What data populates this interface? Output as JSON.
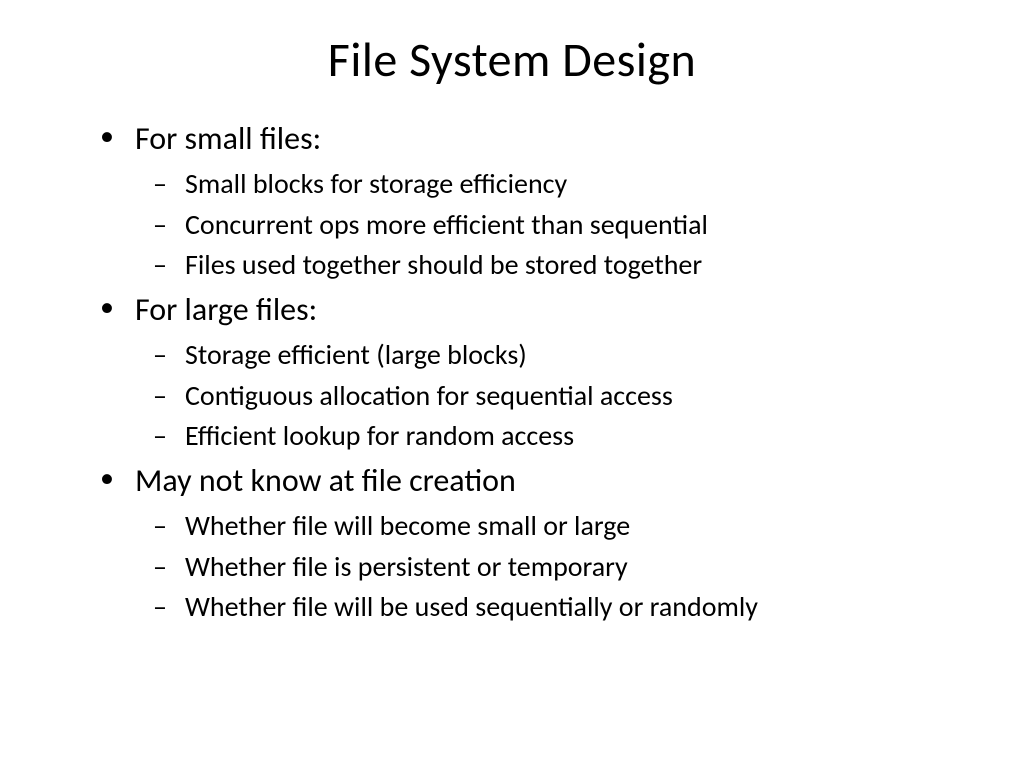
{
  "slide": {
    "title": "File System Design",
    "background_color": "#ffffff",
    "text_color": "#000000",
    "title_fontsize": 48,
    "level1_fontsize": 32,
    "level2_fontsize": 28,
    "font_family": "Calibri",
    "bullets": [
      {
        "text": "For small files:",
        "children": [
          "Small blocks for storage efficiency",
          "Concurrent ops more efficient than sequential",
          "Files used together should be stored together"
        ]
      },
      {
        "text": "For large files:",
        "children": [
          "Storage efficient (large blocks)",
          "Contiguous allocation for sequential access",
          "Efficient lookup for random access"
        ]
      },
      {
        "text": "May not know at file creation",
        "children": [
          "Whether file will become small or large",
          "Whether file is persistent or temporary",
          "Whether file will be used sequentially or randomly"
        ]
      }
    ]
  }
}
